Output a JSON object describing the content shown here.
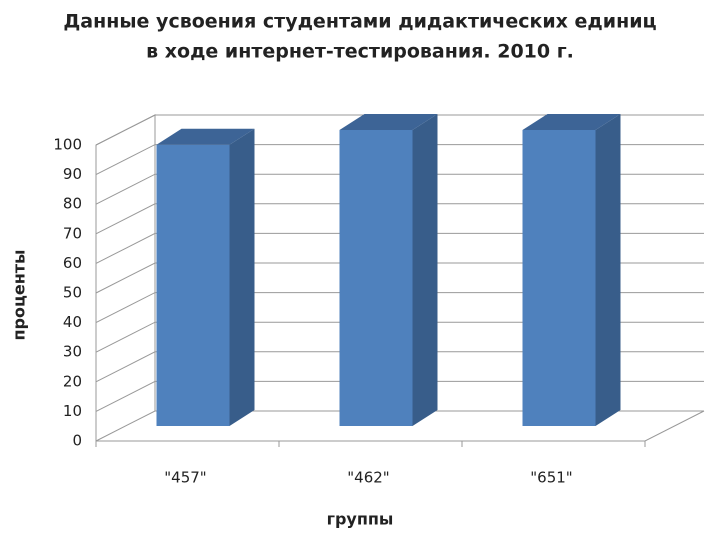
{
  "chart_data": {
    "type": "bar3d",
    "title": [
      "Данные усвоения студентами дидактических единиц",
      "в ходе интернет-тестирования. 2010 г."
    ],
    "x_label": "группы",
    "y_label": "проценты",
    "categories": [
      "\"457\"",
      "\"462\"",
      "\"651\""
    ],
    "values": [
      95,
      100,
      100
    ],
    "color": "#4f81bd",
    "ylim": [
      0,
      100
    ],
    "yticks": [
      0,
      10,
      20,
      30,
      40,
      50,
      60,
      70,
      80,
      90,
      100
    ],
    "grid": true
  }
}
